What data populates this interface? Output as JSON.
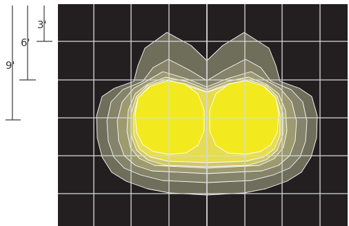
{
  "scale": {
    "labels": [
      "3'",
      "6'",
      "9'"
    ]
  },
  "colors": {
    "background": "#231f20",
    "grid": "#d9d9d9",
    "scale_ink": "#3a3a3a",
    "core": "#f2ea1f",
    "outline": "#ffffff"
  }
}
